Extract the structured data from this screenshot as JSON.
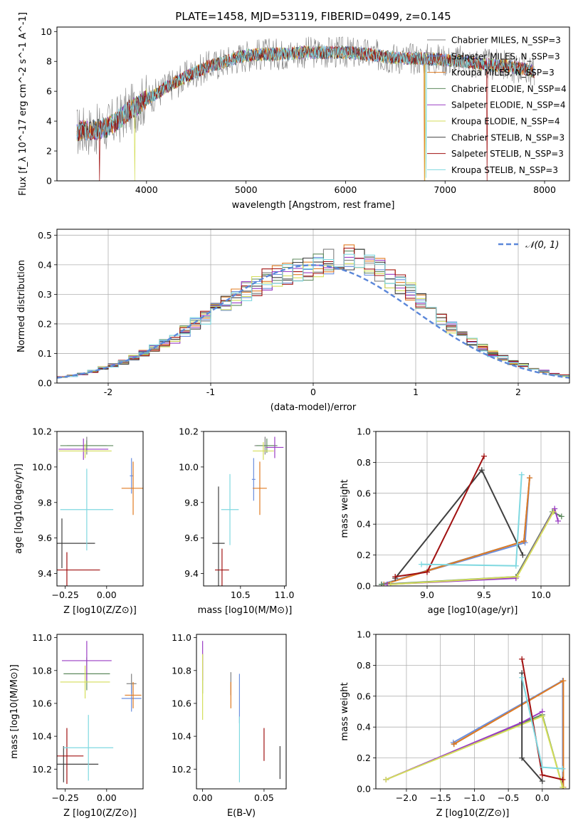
{
  "colors": {
    "chabrier_miles": "#808080",
    "salpeter_miles": "#6b8fde",
    "kroupa_miles": "#e07b22",
    "chabrier_elodie": "#5e8a5e",
    "salpeter_elodie": "#9a3ec4",
    "kroupa_elodie": "#d4de5a",
    "chabrier_stelib": "#404040",
    "salpeter_stelib": "#a01010",
    "kroupa_stelib": "#7fd8e0",
    "gaussian": "#5b87d9",
    "grid": "#b0b0b0"
  },
  "chart_data": [
    {
      "id": "spectrum",
      "type": "line",
      "title": "PLATE=1458, MJD=53119, FIBERID=0499, z=0.145",
      "xlabel": "wavelength [Angstrom, rest frame]",
      "ylabel": "Flux [f_λ 10^-17 erg cm^-2 s^-1 A^-1]",
      "xlim": [
        3100,
        8250
      ],
      "ylim": [
        0,
        10.3
      ],
      "xticks": [
        4000,
        5000,
        6000,
        7000,
        8000
      ],
      "yticks": [
        0,
        2,
        4,
        6,
        8,
        10
      ],
      "grid": false,
      "legend_position": "upper-right",
      "series": [
        {
          "name": "Chabrier MILES, N_SSP=3",
          "color_key": "chabrier_miles"
        },
        {
          "name": "Salpeter MILES, N_SSP=3",
          "color_key": "salpeter_miles"
        },
        {
          "name": "Kroupa MILES, N_SSP=3",
          "color_key": "kroupa_miles"
        },
        {
          "name": "Chabrier ELODIE, N_SSP=4",
          "color_key": "chabrier_elodie"
        },
        {
          "name": "Salpeter ELODIE, N_SSP=4",
          "color_key": "salpeter_elodie"
        },
        {
          "name": "Kroupa ELODIE, N_SSP=4",
          "color_key": "kroupa_elodie"
        },
        {
          "name": "Chabrier STELIB, N_SSP=3",
          "color_key": "chabrier_stelib"
        },
        {
          "name": "Salpeter STELIB, N_SSP=3",
          "color_key": "salpeter_stelib"
        },
        {
          "name": "Kroupa STELIB, N_SSP=3",
          "color_key": "kroupa_stelib"
        }
      ],
      "continuum": {
        "x": [
          3300,
          3400,
          3500,
          3600,
          3700,
          3800,
          3900,
          4000,
          4100,
          4200,
          4300,
          4400,
          4500,
          4600,
          4700,
          4800,
          4900,
          5000,
          5200,
          5400,
          5600,
          5800,
          6000,
          6200,
          6400,
          6600,
          6800,
          7000,
          7200,
          7400,
          7600,
          7800,
          7900
        ],
        "y": [
          3.3,
          3.4,
          3.4,
          3.6,
          4.0,
          4.6,
          5.0,
          5.5,
          5.8,
          6.3,
          6.6,
          7.0,
          7.3,
          7.6,
          7.8,
          8.0,
          8.2,
          8.4,
          8.5,
          8.5,
          8.6,
          8.6,
          8.6,
          8.5,
          8.3,
          8.2,
          8.2,
          8.1,
          8.0,
          7.8,
          7.7,
          7.5,
          7.3
        ]
      }
    },
    {
      "id": "residuals",
      "type": "histogram",
      "xlabel": "(data-model)/error",
      "ylabel": "Normed distribution",
      "xlim": [
        -2.5,
        2.5
      ],
      "ylim": [
        0,
        0.52
      ],
      "xticks": [
        -2,
        -1,
        0,
        1,
        2
      ],
      "yticks": [
        0.0,
        0.1,
        0.2,
        0.3,
        0.4,
        0.5
      ],
      "grid": true,
      "bin_width": 0.1,
      "legend_position": "upper-right",
      "gaussian_label": "𝒩(0, 1)",
      "envelope": [
        0.02,
        0.025,
        0.03,
        0.04,
        0.05,
        0.06,
        0.07,
        0.085,
        0.1,
        0.12,
        0.135,
        0.15,
        0.175,
        0.2,
        0.22,
        0.25,
        0.27,
        0.29,
        0.31,
        0.33,
        0.35,
        0.36,
        0.37,
        0.38,
        0.39,
        0.4,
        0.41,
        0.42,
        0.43,
        0.42,
        0.4,
        0.38,
        0.35,
        0.33,
        0.31,
        0.28,
        0.25,
        0.22,
        0.19,
        0.16,
        0.14,
        0.12,
        0.1,
        0.085,
        0.07,
        0.06,
        0.05,
        0.04,
        0.03,
        0.025
      ]
    },
    {
      "id": "age_vs_Z",
      "type": "errorbar",
      "xlabel": "Z [log10(Z/Z⊙)]",
      "ylabel": "age [log10(age/yr)]",
      "xlim": [
        -0.3,
        0.22
      ],
      "ylim": [
        9.33,
        10.2
      ],
      "xticks": [
        -0.25,
        0.0
      ],
      "xticklabels": [
        "−0.25",
        "0.00"
      ],
      "yticks": [
        9.4,
        9.6,
        9.8,
        10.0,
        10.2
      ],
      "grid": false,
      "points": [
        {
          "key": "chabrier_miles",
          "x": -0.12,
          "y": 10.12,
          "xerr": 0.12,
          "yerr": 0.05
        },
        {
          "key": "salpeter_miles",
          "x": 0.15,
          "y": 9.95,
          "xerr": 0.01,
          "yerr": 0.1
        },
        {
          "key": "kroupa_miles",
          "x": 0.16,
          "y": 9.88,
          "xerr": 0.07,
          "yerr": 0.15
        },
        {
          "key": "chabrier_elodie",
          "x": -0.12,
          "y": 10.12,
          "xerr": 0.16,
          "yerr": 0.03
        },
        {
          "key": "salpeter_elodie",
          "x": -0.14,
          "y": 10.1,
          "xerr": 0.15,
          "yerr": 0.06
        },
        {
          "key": "kroupa_elodie",
          "x": -0.13,
          "y": 10.09,
          "xerr": 0.16,
          "yerr": 0.04
        },
        {
          "key": "chabrier_stelib",
          "x": -0.27,
          "y": 9.57,
          "xerr": 0.2,
          "yerr": 0.14
        },
        {
          "key": "salpeter_stelib",
          "x": -0.24,
          "y": 9.42,
          "xerr": 0.2,
          "yerr": 0.1
        },
        {
          "key": "kroupa_stelib",
          "x": -0.12,
          "y": 9.76,
          "xerr": 0.16,
          "yerr": 0.23
        }
      ]
    },
    {
      "id": "age_vs_mass",
      "type": "errorbar",
      "xlabel": "mass [log10(M/M⊙)]",
      "ylabel": "",
      "xlim": [
        10.08,
        11.02
      ],
      "ylim": [
        9.33,
        10.2
      ],
      "xticks": [
        10.5,
        11.0
      ],
      "xticklabels": [
        "10.5",
        "11.0"
      ],
      "yticks": [
        9.4,
        9.6,
        9.8,
        10.0,
        10.2
      ],
      "grid": false,
      "points": [
        {
          "key": "chabrier_miles",
          "x": 10.78,
          "y": 10.12,
          "xerr": 0.12,
          "yerr": 0.05
        },
        {
          "key": "salpeter_miles",
          "x": 10.65,
          "y": 9.93,
          "xerr": 0.02,
          "yerr": 0.12
        },
        {
          "key": "kroupa_miles",
          "x": 10.72,
          "y": 9.88,
          "xerr": 0.08,
          "yerr": 0.15
        },
        {
          "key": "chabrier_elodie",
          "x": 10.8,
          "y": 10.12,
          "xerr": 0.12,
          "yerr": 0.04
        },
        {
          "key": "salpeter_elodie",
          "x": 10.89,
          "y": 10.11,
          "xerr": 0.1,
          "yerr": 0.06
        },
        {
          "key": "kroupa_elodie",
          "x": 10.76,
          "y": 10.09,
          "xerr": 0.12,
          "yerr": 0.05
        },
        {
          "key": "chabrier_stelib",
          "x": 10.25,
          "y": 9.57,
          "xerr": 0.07,
          "yerr": 0.32
        },
        {
          "key": "salpeter_stelib",
          "x": 10.29,
          "y": 9.42,
          "xerr": 0.08,
          "yerr": 0.12
        },
        {
          "key": "kroupa_stelib",
          "x": 10.38,
          "y": 9.76,
          "xerr": 0.1,
          "yerr": 0.2
        }
      ]
    },
    {
      "id": "weight_vs_age",
      "type": "line",
      "xlabel": "age [log10(age/yr)]",
      "ylabel": "mass weight",
      "xlim": [
        8.55,
        10.25
      ],
      "ylim": [
        0,
        1.0
      ],
      "xticks": [
        9.0,
        9.5,
        10.0
      ],
      "xticklabels": [
        "9.0",
        "9.5",
        "10.0"
      ],
      "yticks": [
        0.0,
        0.2,
        0.4,
        0.6,
        0.8,
        1.0
      ],
      "grid": true,
      "series": [
        {
          "key": "chabrier_miles",
          "x": [
            8.6,
            9.85,
            9.9
          ],
          "y": [
            0.01,
            0.29,
            0.7
          ]
        },
        {
          "key": "salpeter_miles",
          "x": [
            8.6,
            9.86,
            9.9
          ],
          "y": [
            0.01,
            0.28,
            0.7
          ]
        },
        {
          "key": "kroupa_miles",
          "x": [
            8.62,
            9.85,
            9.9
          ],
          "y": [
            0.01,
            0.29,
            0.7
          ]
        },
        {
          "key": "chabrier_elodie",
          "x": [
            8.6,
            9.78,
            10.1,
            10.18
          ],
          "y": [
            0.01,
            0.06,
            0.48,
            0.45
          ]
        },
        {
          "key": "salpeter_elodie",
          "x": [
            8.65,
            9.78,
            10.12,
            10.15
          ],
          "y": [
            0.01,
            0.05,
            0.5,
            0.42
          ]
        },
        {
          "key": "kroupa_elodie",
          "x": [
            8.68,
            9.79,
            10.11
          ],
          "y": [
            0.01,
            0.06,
            0.48
          ]
        },
        {
          "key": "chabrier_stelib",
          "x": [
            8.72,
            9.48,
            9.84
          ],
          "y": [
            0.05,
            0.75,
            0.2
          ]
        },
        {
          "key": "salpeter_stelib",
          "x": [
            8.72,
            9.0,
            9.5
          ],
          "y": [
            0.06,
            0.09,
            0.84
          ]
        },
        {
          "key": "kroupa_stelib",
          "x": [
            8.95,
            9.78,
            9.83
          ],
          "y": [
            0.14,
            0.13,
            0.72
          ]
        }
      ]
    },
    {
      "id": "mass_vs_Z",
      "type": "errorbar",
      "xlabel": "Z [log10(Z/Z⊙)]",
      "ylabel": "mass [log10(M/M⊙)]",
      "xlim": [
        -0.3,
        0.22
      ],
      "ylim": [
        10.08,
        11.02
      ],
      "xticks": [
        -0.25,
        0.0
      ],
      "xticklabels": [
        "−0.25",
        "0.00"
      ],
      "yticks": [
        10.2,
        10.4,
        10.6,
        10.8,
        11.0
      ],
      "grid": false,
      "points": [
        {
          "key": "chabrier_miles",
          "x": 0.15,
          "y": 10.72,
          "xerr": 0.03,
          "yerr": 0.06
        },
        {
          "key": "salpeter_miles",
          "x": 0.15,
          "y": 10.63,
          "xerr": 0.06,
          "yerr": 0.08
        },
        {
          "key": "kroupa_miles",
          "x": 0.16,
          "y": 10.65,
          "xerr": 0.05,
          "yerr": 0.08
        },
        {
          "key": "chabrier_elodie",
          "x": -0.12,
          "y": 10.78,
          "xerr": 0.14,
          "yerr": 0.1
        },
        {
          "key": "salpeter_elodie",
          "x": -0.12,
          "y": 10.86,
          "xerr": 0.15,
          "yerr": 0.12
        },
        {
          "key": "kroupa_elodie",
          "x": -0.13,
          "y": 10.73,
          "xerr": 0.15,
          "yerr": 0.1
        },
        {
          "key": "chabrier_stelib",
          "x": -0.26,
          "y": 10.23,
          "xerr": 0.21,
          "yerr": 0.11
        },
        {
          "key": "salpeter_stelib",
          "x": -0.24,
          "y": 10.28,
          "xerr": 0.1,
          "yerr": 0.17
        },
        {
          "key": "kroupa_stelib",
          "x": -0.11,
          "y": 10.33,
          "xerr": 0.15,
          "yerr": 0.2
        }
      ]
    },
    {
      "id": "mass_vs_ebv",
      "type": "errorbar",
      "xlabel": "E(B-V)",
      "ylabel": "",
      "xlim": [
        -0.005,
        0.068
      ],
      "ylim": [
        10.08,
        11.02
      ],
      "xticks": [
        0.0,
        0.05
      ],
      "xticklabels": [
        "0.00",
        "0.05"
      ],
      "yticks": [
        10.2,
        10.4,
        10.6,
        10.8,
        11.0
      ],
      "grid": false,
      "points": [
        {
          "key": "chabrier_miles",
          "x": 0.023,
          "y": 10.72,
          "xerr": 0,
          "yerr": 0.07
        },
        {
          "key": "salpeter_miles",
          "x": 0.03,
          "y": 10.63,
          "xerr": 0,
          "yerr": 0.15
        },
        {
          "key": "kroupa_miles",
          "x": 0.023,
          "y": 10.65,
          "xerr": 0,
          "yerr": 0.08
        },
        {
          "key": "chabrier_elodie",
          "x": 0.0,
          "y": 10.78,
          "xerr": 0,
          "yerr": 0.12
        },
        {
          "key": "salpeter_elodie",
          "x": 0.0,
          "y": 10.86,
          "xerr": 0,
          "yerr": 0.12
        },
        {
          "key": "kroupa_elodie",
          "x": 0.0,
          "y": 10.7,
          "xerr": 0,
          "yerr": 0.2
        },
        {
          "key": "chabrier_stelib",
          "x": 0.063,
          "y": 10.24,
          "xerr": 0,
          "yerr": 0.1
        },
        {
          "key": "salpeter_stelib",
          "x": 0.05,
          "y": 10.35,
          "xerr": 0,
          "yerr": 0.1
        },
        {
          "key": "kroupa_stelib",
          "x": 0.03,
          "y": 10.32,
          "xerr": 0,
          "yerr": 0.2
        }
      ]
    },
    {
      "id": "weight_vs_Z",
      "type": "line",
      "xlabel": "Z [log10(Z/Z⊙)]",
      "ylabel": "mass weight",
      "xlim": [
        -2.45,
        0.4
      ],
      "ylim": [
        0,
        1.0
      ],
      "xticks": [
        -2.0,
        -1.5,
        -1.0,
        -0.5,
        0.0
      ],
      "xticklabels": [
        "−2.0",
        "−1.5",
        "−1.0",
        "−0.5",
        "0.0"
      ],
      "yticks": [
        0.0,
        0.2,
        0.4,
        0.6,
        0.8,
        1.0
      ],
      "grid": true,
      "series": [
        {
          "key": "chabrier_miles",
          "x": [
            -1.3,
            0.3,
            0.3
          ],
          "y": [
            0.29,
            0.7,
            0.01
          ]
        },
        {
          "key": "salpeter_miles",
          "x": [
            -1.31,
            0.3,
            0.3
          ],
          "y": [
            0.3,
            0.7,
            0.01
          ]
        },
        {
          "key": "kroupa_miles",
          "x": [
            -1.3,
            0.31,
            0.31
          ],
          "y": [
            0.29,
            0.7,
            0.01
          ]
        },
        {
          "key": "chabrier_elodie",
          "x": [
            -2.3,
            0.0,
            0.3
          ],
          "y": [
            0.06,
            0.48,
            0.01
          ]
        },
        {
          "key": "salpeter_elodie",
          "x": [
            -2.3,
            -0.3,
            0.0
          ],
          "y": [
            0.06,
            0.43,
            0.5
          ]
        },
        {
          "key": "kroupa_elodie",
          "x": [
            -2.3,
            0.0,
            0.3
          ],
          "y": [
            0.06,
            0.47,
            0.01
          ]
        },
        {
          "key": "chabrier_stelib",
          "x": [
            -0.3,
            -0.3,
            0.0
          ],
          "y": [
            0.75,
            0.2,
            0.05
          ]
        },
        {
          "key": "salpeter_stelib",
          "x": [
            -0.3,
            0.0,
            0.3
          ],
          "y": [
            0.84,
            0.09,
            0.06
          ]
        },
        {
          "key": "kroupa_stelib",
          "x": [
            -0.3,
            0.0,
            0.3
          ],
          "y": [
            0.72,
            0.14,
            0.13
          ]
        }
      ]
    }
  ]
}
